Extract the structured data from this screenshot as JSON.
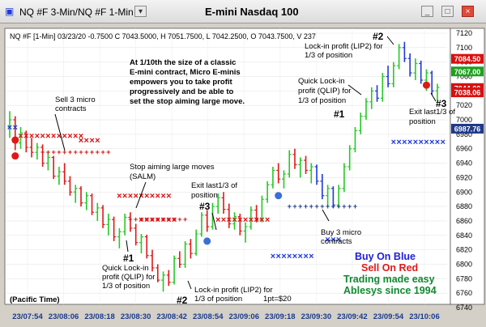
{
  "window": {
    "symbol_tab": "NQ #F 3-Min/NQ #F 1-Min",
    "title": "E-mini Nasdaq 100"
  },
  "chart_data": {
    "type": "candlestick",
    "info_line": "NQ #F [1-Min] 03/23/20  -0.7500 C 7043.5000, H 7051.7500, L 7042.2500, O 7043.7500, V 237",
    "ylim": [
      6740,
      7120
    ],
    "y_ticks": [
      "7120",
      "7100",
      "7080",
      "7060",
      "7040",
      "7020",
      "7000",
      "6980",
      "6960",
      "6940",
      "6920",
      "6900",
      "6880",
      "6860",
      "6840",
      "6820",
      "6800",
      "6780",
      "6760",
      "6740"
    ],
    "x_ticks": [
      "23/07:54",
      "23/08:06",
      "23/08:18",
      "23/08:30",
      "23/08:42",
      "23/08:54",
      "23/09:06",
      "23/09:18",
      "23/09:30",
      "23/09:42",
      "23/09:54",
      "23/10:06"
    ],
    "time_zone_label": "(Pacific Time)",
    "price_labels": [
      {
        "text": "7084.50",
        "value": 7084.5,
        "color": "#d81010"
      },
      {
        "text": "7067.00",
        "value": 7067.0,
        "color": "#20a020"
      },
      {
        "text": "7044.00",
        "value": 7044.0,
        "color": "#d81010"
      },
      {
        "text": "7038.06",
        "value": 7038.06,
        "color": "#d81010"
      },
      {
        "text": "6987.76",
        "value": 6987.76,
        "color": "#1f3a8a"
      }
    ],
    "candles": [
      [
        6990,
        7012,
        6975,
        7000
      ],
      [
        7000,
        7005,
        6958,
        6968
      ],
      [
        6968,
        6990,
        6960,
        6982
      ],
      [
        6982,
        6985,
        6955,
        6962
      ],
      [
        6962,
        6975,
        6948,
        6955
      ],
      [
        6955,
        6968,
        6945,
        6962
      ],
      [
        6962,
        6966,
        6935,
        6940
      ],
      [
        6940,
        6955,
        6930,
        6948
      ],
      [
        6948,
        6950,
        6918,
        6922
      ],
      [
        6922,
        6935,
        6910,
        6928
      ],
      [
        6928,
        6940,
        6910,
        6915
      ],
      [
        6915,
        6922,
        6895,
        6900
      ],
      [
        6900,
        6910,
        6885,
        6905
      ],
      [
        6905,
        6908,
        6880,
        6885
      ],
      [
        6885,
        6900,
        6875,
        6895
      ],
      [
        6895,
        6898,
        6868,
        6872
      ],
      [
        6872,
        6885,
        6860,
        6878
      ],
      [
        6878,
        6882,
        6850,
        6855
      ],
      [
        6855,
        6870,
        6840,
        6862
      ],
      [
        6862,
        6866,
        6832,
        6838
      ],
      [
        6838,
        6850,
        6822,
        6845
      ],
      [
        6845,
        6870,
        6840,
        6865
      ],
      [
        6865,
        6872,
        6845,
        6850
      ],
      [
        6850,
        6856,
        6826,
        6830
      ],
      [
        6830,
        6842,
        6815,
        6838
      ],
      [
        6838,
        6841,
        6808,
        6812
      ],
      [
        6812,
        6820,
        6790,
        6795
      ],
      [
        6795,
        6800,
        6775,
        6778
      ],
      [
        6778,
        6790,
        6762,
        6785
      ],
      [
        6785,
        6792,
        6770,
        6775
      ],
      [
        6775,
        6812,
        6772,
        6808
      ],
      [
        6808,
        6818,
        6795,
        6800
      ],
      [
        6800,
        6832,
        6795,
        6828
      ],
      [
        6828,
        6835,
        6808,
        6815
      ],
      [
        6815,
        6848,
        6812,
        6842
      ],
      [
        6842,
        6872,
        6838,
        6868
      ],
      [
        6868,
        6875,
        6845,
        6852
      ],
      [
        6852,
        6885,
        6848,
        6880
      ],
      [
        6880,
        6898,
        6870,
        6892
      ],
      [
        6892,
        6900,
        6870,
        6876
      ],
      [
        6876,
        6884,
        6850,
        6856
      ],
      [
        6856,
        6872,
        6848,
        6866
      ],
      [
        6866,
        6870,
        6840,
        6846
      ],
      [
        6846,
        6858,
        6830,
        6852
      ],
      [
        6852,
        6880,
        6848,
        6875
      ],
      [
        6875,
        6882,
        6858,
        6862
      ],
      [
        6862,
        6895,
        6858,
        6890
      ],
      [
        6890,
        6915,
        6885,
        6910
      ],
      [
        6910,
        6935,
        6905,
        6930
      ],
      [
        6930,
        6940,
        6912,
        6918
      ],
      [
        6918,
        6930,
        6905,
        6925
      ],
      [
        6925,
        6958,
        6920,
        6952
      ],
      [
        6952,
        6960,
        6932,
        6938
      ],
      [
        6938,
        6948,
        6920,
        6944
      ],
      [
        6944,
        6950,
        6925,
        6930
      ],
      [
        6930,
        6940,
        6912,
        6935
      ],
      [
        6935,
        6938,
        6910,
        6915
      ],
      [
        6915,
        6925,
        6890,
        6895
      ],
      [
        6895,
        6910,
        6880,
        6905
      ],
      [
        6905,
        6908,
        6878,
        6882
      ],
      [
        6882,
        6910,
        6878,
        6905
      ],
      [
        6905,
        6940,
        6900,
        6935
      ],
      [
        6935,
        6965,
        6930,
        6960
      ],
      [
        6960,
        6990,
        6955,
        6985
      ],
      [
        6985,
        7010,
        6980,
        7005
      ],
      [
        7005,
        7030,
        7000,
        7025
      ],
      [
        7025,
        7045,
        7015,
        7040
      ],
      [
        7040,
        7048,
        7025,
        7030
      ],
      [
        7030,
        7065,
        7025,
        7060
      ],
      [
        7060,
        7075,
        7045,
        7050
      ],
      [
        7050,
        7080,
        7045,
        7075
      ],
      [
        7075,
        7105,
        7070,
        7100
      ],
      [
        7100,
        7108,
        7080,
        7085
      ],
      [
        7085,
        7092,
        7060,
        7065
      ],
      [
        7065,
        7085,
        7055,
        7078
      ],
      [
        7078,
        7082,
        7050,
        7055
      ],
      [
        7055,
        7070,
        7040,
        7065
      ],
      [
        7065,
        7068,
        7035,
        7040
      ],
      [
        7040,
        7050,
        7025,
        7045
      ]
    ],
    "markers": {
      "red_x_rows": [
        {
          "value": 6978,
          "from": 2,
          "to": 13
        },
        {
          "value": 6972,
          "from": 13,
          "to": 16
        },
        {
          "value": 6895,
          "from": 20,
          "to": 29
        },
        {
          "value": 6862,
          "from": 24,
          "to": 30
        },
        {
          "value": 6862,
          "from": 38,
          "to": 47
        }
      ],
      "blue_x_rows": [
        {
          "value": 6990,
          "from": 0,
          "to": 1
        },
        {
          "value": 6835,
          "from": 58,
          "to": 60
        },
        {
          "value": 6812,
          "from": 48,
          "to": 55
        },
        {
          "value": 6970,
          "from": 70,
          "to": 79
        }
      ],
      "stop_plus_rows": [
        {
          "value": 6955,
          "from": 6,
          "to": 18,
          "color": "#d81010"
        },
        {
          "value": 6862,
          "from": 22,
          "to": 32,
          "color": "#d81010"
        },
        {
          "value": 6880,
          "from": 51,
          "to": 63,
          "color": "#1f3a8a"
        }
      ],
      "big_dots": [
        {
          "i": 1,
          "value": 6972,
          "color": "#e01818"
        },
        {
          "i": 1,
          "value": 6950,
          "color": "#e01818"
        },
        {
          "i": 36,
          "value": 6832,
          "color": "#3a6fd8"
        },
        {
          "i": 49,
          "value": 6895,
          "color": "#3a6fd8"
        },
        {
          "i": 76,
          "value": 7048,
          "color": "#e01818"
        }
      ]
    }
  },
  "annotations": {
    "note_title": "At 1/10th the size of a classic",
    "note_lines": [
      "E-mini contract, Micro E-minis",
      "empowers you to take profit",
      "progressively and be able to",
      "set the stop aiming large move."
    ],
    "sell_3": [
      "Sell 3 micro",
      "contracts"
    ],
    "salm": [
      "Stop aiming large moves",
      "(SALM)"
    ],
    "exit_last_1": [
      "Exit last1/3 of",
      "position"
    ],
    "hash3_1": "#3",
    "hash1_1": "#1",
    "qlip_1": [
      "Quick Lock-in",
      "profit (QLIP) for",
      "1/3 of position"
    ],
    "hash2_1": "#2",
    "lip2_1": [
      "Lock-in profit (LIP2) for",
      "1/3 of position"
    ],
    "pt": "1pt=$20",
    "buy_3": [
      "Buy 3 micro",
      "contracts"
    ],
    "hash1_2": "#1",
    "qlip_2": [
      "Quick Lock-in",
      "profit (QLIP) for",
      "1/3 of position"
    ],
    "hash2_2": "#2",
    "lip2_2": [
      "Lock-in profit (LIP2) for",
      "1/3 of position"
    ],
    "exit_last_2": [
      "Exit last1/3 of",
      "position"
    ],
    "hash3_2": "#3",
    "legend": {
      "buy": "Buy On Blue",
      "sell": "Sell On Red",
      "tagline1": "Trading made easy",
      "tagline2": "Ablesys since 1994"
    }
  },
  "colors": {
    "up": "#28c828",
    "down": "#e01818",
    "blue_down": "#1f3ad8",
    "blue_marker": "#1f3ad8",
    "red_marker": "#d81010",
    "buy_text": "#1f1fd8",
    "sell_text": "#e01818",
    "green_text": "#108a30"
  }
}
